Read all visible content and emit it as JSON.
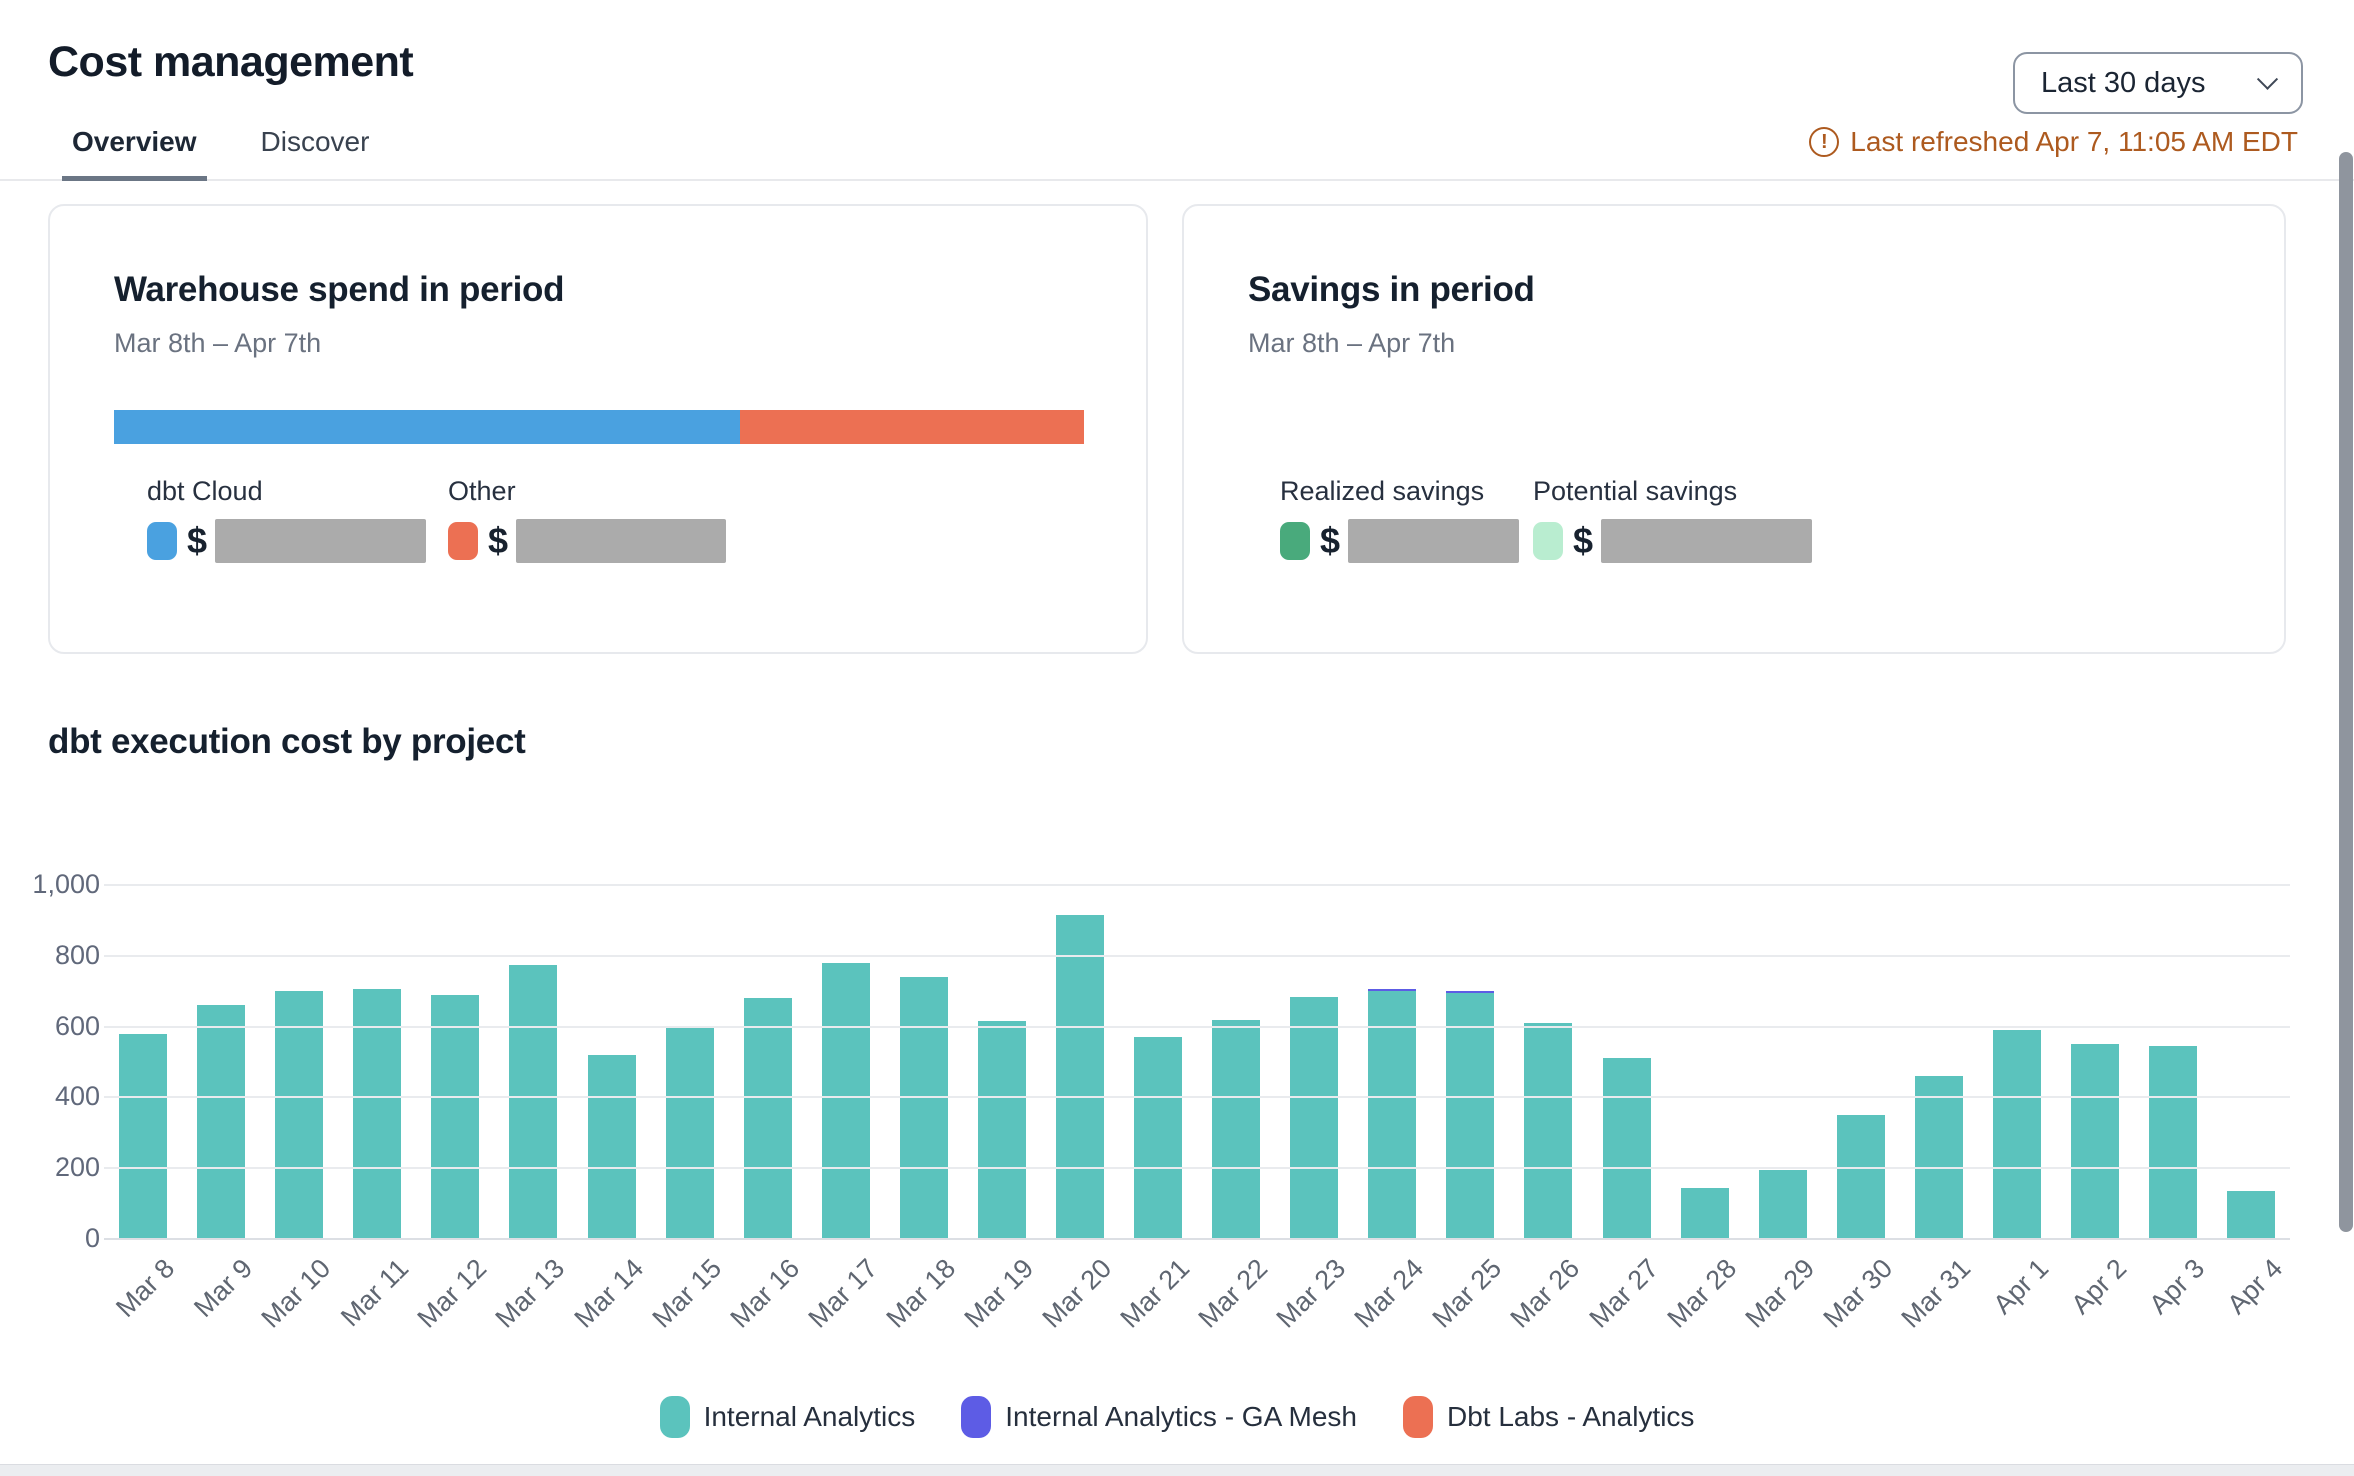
{
  "page": {
    "title": "Cost management"
  },
  "header": {
    "date_range_selector": {
      "label": "Last 30 days"
    },
    "refresh": {
      "text": "Last refreshed Apr 7, 11:05 AM EDT",
      "warning_icon_glyph": "!"
    }
  },
  "tabs": [
    {
      "label": "Overview",
      "active": true
    },
    {
      "label": "Discover",
      "active": false
    }
  ],
  "cards": {
    "warehouse_spend": {
      "title": "Warehouse spend in period",
      "period": "Mar 8th – Apr 7th",
      "stacked_bar_segments": [
        {
          "name": "dbt Cloud",
          "color": "#4aa1e0",
          "percent": 64.5
        },
        {
          "name": "Other",
          "color": "#ec7053",
          "percent": 35.5
        }
      ],
      "legend": [
        {
          "label": "dbt Cloud",
          "color": "#4aa1e0",
          "currency_symbol": "$",
          "value_redacted": true
        },
        {
          "label": "Other",
          "color": "#ec7053",
          "currency_symbol": "$",
          "value_redacted": true
        }
      ]
    },
    "savings": {
      "title": "Savings in period",
      "period": "Mar 8th – Apr 7th",
      "legend": [
        {
          "label": "Realized savings",
          "color": "#49aa7c",
          "currency_symbol": "$",
          "value_redacted": true
        },
        {
          "label": "Potential savings",
          "color": "#b9edd0",
          "currency_symbol": "$",
          "value_redacted": true
        }
      ]
    }
  },
  "chart_section": {
    "title": "dbt execution cost by project"
  },
  "chart_data": {
    "type": "bar",
    "stacked": true,
    "title": "dbt execution cost by project",
    "xlabel": "",
    "ylabel": "",
    "ylim": [
      0,
      1000
    ],
    "ytick_labels": [
      "0",
      "200",
      "400",
      "600",
      "800",
      "1,000"
    ],
    "grid": true,
    "legend_position": "bottom",
    "categories": [
      "Mar 8",
      "Mar 9",
      "Mar 10",
      "Mar 11",
      "Mar 12",
      "Mar 13",
      "Mar 14",
      "Mar 15",
      "Mar 16",
      "Mar 17",
      "Mar 18",
      "Mar 19",
      "Mar 20",
      "Mar 21",
      "Mar 22",
      "Mar 23",
      "Mar 24",
      "Mar 25",
      "Mar 26",
      "Mar 27",
      "Mar 28",
      "Mar 29",
      "Mar 30",
      "Mar 31",
      "Apr 1",
      "Apr 2",
      "Apr 3",
      "Apr 4"
    ],
    "series": [
      {
        "name": "Internal Analytics",
        "color": "#5bc3bd",
        "values": [
          580,
          660,
          700,
          705,
          690,
          775,
          520,
          595,
          680,
          780,
          740,
          615,
          915,
          570,
          620,
          685,
          700,
          695,
          610,
          510,
          145,
          195,
          350,
          460,
          590,
          550,
          545,
          135
        ]
      },
      {
        "name": "Internal Analytics - GA Mesh",
        "color": "#5d5ce5",
        "values": [
          0,
          0,
          0,
          0,
          0,
          0,
          0,
          0,
          0,
          0,
          0,
          0,
          0,
          0,
          0,
          0,
          5,
          5,
          0,
          0,
          0,
          0,
          0,
          0,
          0,
          0,
          0,
          0
        ]
      },
      {
        "name": "Dbt Labs - Analytics",
        "color": "#ec7053",
        "values": [
          0,
          0,
          0,
          0,
          0,
          0,
          0,
          0,
          0,
          0,
          0,
          0,
          0,
          0,
          0,
          0,
          0,
          0,
          0,
          0,
          0,
          0,
          0,
          0,
          0,
          0,
          0,
          0
        ]
      }
    ]
  }
}
